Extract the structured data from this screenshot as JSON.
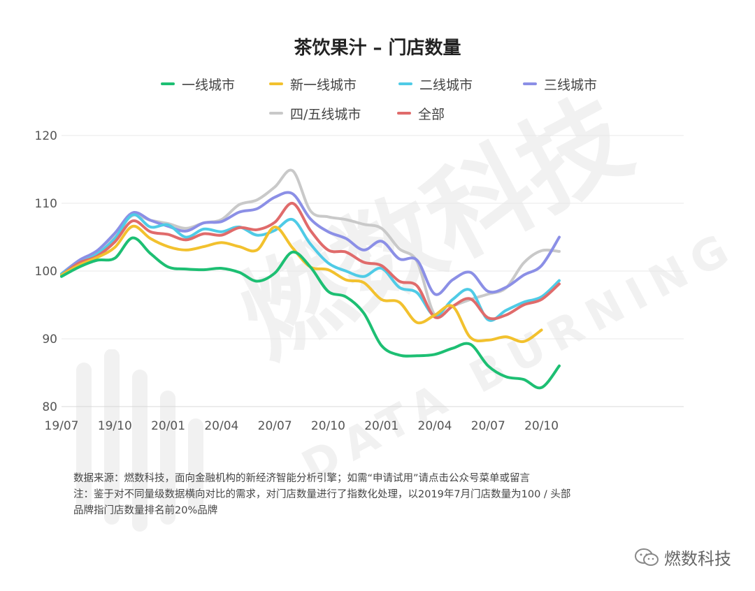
{
  "title": "茶饮果汁 – 门店数量",
  "footnotes": [
    "数据来源：燃数科技，面向金融机构的新经济智能分析引擎；如需“申请试用”请点击公众号菜单或留言",
    "注：鉴于对不同量级数据横向对比的需求，对门店数量进行了指数化处理，以2019年7月门店数量为100 / 头部",
    "品牌指门店数量排名前20%品牌"
  ],
  "brand": {
    "name": "燃数科技",
    "icon": "wechat-icon"
  },
  "watermark": {
    "cn": "燃数科技",
    "en": "DATA BURNING"
  },
  "chart_data": {
    "type": "line",
    "title": "茶饮果汁 – 门店数量",
    "xlabel": "",
    "ylabel": "",
    "ylim": [
      80,
      120
    ],
    "yticks": [
      80,
      90,
      100,
      110,
      120
    ],
    "xlim": [
      0,
      17.5
    ],
    "xticks": [
      {
        "label": "19/07",
        "x": 0
      },
      {
        "label": "19/10",
        "x": 1.5
      },
      {
        "label": "20/01",
        "x": 3
      },
      {
        "label": "20/04",
        "x": 4.5
      },
      {
        "label": "20/07",
        "x": 6
      },
      {
        "label": "20/10",
        "x": 7.5
      },
      {
        "label": "20/01",
        "x": 9
      },
      {
        "label": "20/04",
        "x": 10.5
      },
      {
        "label": "20/07",
        "x": 12
      },
      {
        "label": "20/10",
        "x": 13.5
      }
    ],
    "grid": true,
    "legend_position": "top",
    "x": [
      0,
      0.5,
      1,
      1.5,
      2,
      2.5,
      3,
      3.5,
      4,
      4.5,
      5,
      5.5,
      6,
      6.5,
      7,
      7.5,
      8,
      8.5,
      9,
      9.5,
      10,
      10.5,
      11,
      11.5,
      12,
      12.5,
      13,
      13.5,
      14,
      14.5
    ],
    "series": [
      {
        "name": "一线城市",
        "color": "#1dbf73",
        "values": [
          99.2,
          100.6,
          101.6,
          101.9,
          104.9,
          102.6,
          100.6,
          100.3,
          100.2,
          100.4,
          99.8,
          98.5,
          99.7,
          102.8,
          100.6,
          97.0,
          96.2,
          93.8,
          89.0,
          87.6,
          87.5,
          87.7,
          88.6,
          89.2,
          86.0,
          84.4,
          84.0,
          82.8,
          86.0,
          null
        ]
      },
      {
        "name": "新一线城市",
        "color": "#f2c12e",
        "values": [
          99.4,
          100.9,
          102.0,
          103.5,
          106.6,
          104.8,
          103.6,
          103.1,
          103.6,
          104.2,
          103.6,
          103.1,
          106.5,
          103.4,
          100.6,
          100.2,
          98.7,
          98.3,
          95.8,
          95.4,
          92.4,
          93.5,
          94.8,
          90.2,
          89.8,
          90.3,
          89.6,
          91.3,
          null,
          null
        ]
      },
      {
        "name": "二线城市",
        "color": "#4fcbe6",
        "values": [
          99.6,
          101.2,
          102.5,
          104.8,
          108.3,
          106.5,
          106.8,
          105.0,
          106.2,
          105.8,
          106.5,
          105.3,
          106.0,
          107.6,
          104.0,
          101.2,
          100.0,
          99.2,
          100.4,
          97.6,
          96.8,
          93.4,
          95.8,
          97.2,
          92.8,
          94.2,
          95.4,
          96.2,
          98.6,
          null
        ]
      },
      {
        "name": "三线城市",
        "color": "#8b8fe6",
        "values": [
          99.6,
          101.6,
          103.0,
          105.6,
          108.6,
          107.5,
          106.6,
          105.9,
          107.1,
          107.3,
          108.7,
          109.2,
          110.9,
          111.4,
          107.7,
          105.8,
          104.8,
          103.1,
          104.4,
          101.8,
          101.6,
          96.6,
          98.7,
          99.8,
          97.0,
          97.6,
          99.4,
          100.8,
          105.0,
          null
        ]
      },
      {
        "name": "四/五线城市",
        "color": "#c9c9c9",
        "values": [
          99.6,
          101.3,
          102.7,
          105.3,
          108.2,
          107.5,
          107.0,
          106.3,
          107.1,
          107.6,
          109.8,
          110.5,
          112.4,
          114.8,
          108.9,
          108.0,
          107.6,
          106.9,
          106.3,
          103.3,
          101.4,
          93.5,
          94.8,
          95.8,
          96.6,
          97.5,
          101.2,
          103.0,
          102.9,
          null
        ]
      },
      {
        "name": "全部",
        "color": "#e06b6b",
        "values": [
          99.4,
          101.2,
          102.2,
          104.3,
          107.4,
          105.8,
          105.4,
          104.6,
          105.5,
          105.3,
          106.4,
          106.1,
          107.2,
          110.0,
          106.0,
          103.1,
          102.8,
          101.3,
          100.8,
          98.5,
          97.8,
          93.2,
          94.8,
          95.9,
          93.1,
          93.5,
          95.0,
          95.8,
          98.1,
          null
        ]
      }
    ]
  }
}
